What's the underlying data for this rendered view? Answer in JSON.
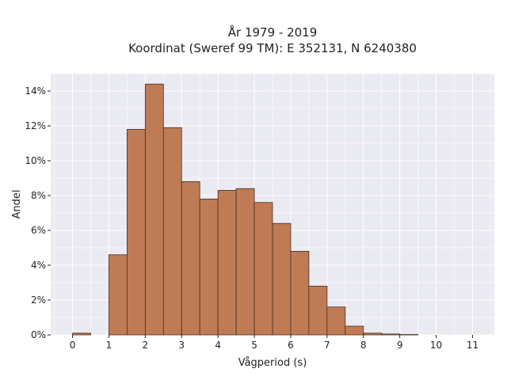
{
  "chart_data": {
    "type": "bar",
    "title": "År 1979 - 2019",
    "subtitle": "Koordinat (Sweref 99 TM): E 352131, N 6240380",
    "xlabel": "Vågperiod (s)",
    "ylabel": "Andel",
    "xlim": [
      -0.6,
      11.6
    ],
    "ylim": [
      0,
      15
    ],
    "x_ticks": [
      0,
      1,
      2,
      3,
      4,
      5,
      6,
      7,
      8,
      9,
      10,
      11
    ],
    "y_ticks": [
      0,
      2,
      4,
      6,
      8,
      10,
      12,
      14
    ],
    "y_tick_labels": [
      "0%",
      "2%",
      "4%",
      "6%",
      "8%",
      "10%",
      "12%",
      "14%"
    ],
    "bin_width": 0.5,
    "bins": [
      {
        "start": 0.0,
        "value": 0.1
      },
      {
        "start": 1.0,
        "value": 4.6
      },
      {
        "start": 1.5,
        "value": 11.8
      },
      {
        "start": 2.0,
        "value": 14.4
      },
      {
        "start": 2.5,
        "value": 11.9
      },
      {
        "start": 3.0,
        "value": 8.8
      },
      {
        "start": 3.5,
        "value": 7.8
      },
      {
        "start": 4.0,
        "value": 8.3
      },
      {
        "start": 4.5,
        "value": 8.4
      },
      {
        "start": 5.0,
        "value": 7.6
      },
      {
        "start": 5.5,
        "value": 6.4
      },
      {
        "start": 6.0,
        "value": 4.8
      },
      {
        "start": 6.5,
        "value": 2.8
      },
      {
        "start": 7.0,
        "value": 1.6
      },
      {
        "start": 7.5,
        "value": 0.5
      },
      {
        "start": 8.0,
        "value": 0.1
      },
      {
        "start": 8.5,
        "value": 0.05
      },
      {
        "start": 9.0,
        "value": 0.02
      }
    ],
    "grid": true,
    "colors": {
      "bar_fill": "#bf7b56",
      "bar_stroke": "#4a2e1e",
      "plot_bg": "#eaeaf2",
      "grid": "#ffffff"
    }
  }
}
